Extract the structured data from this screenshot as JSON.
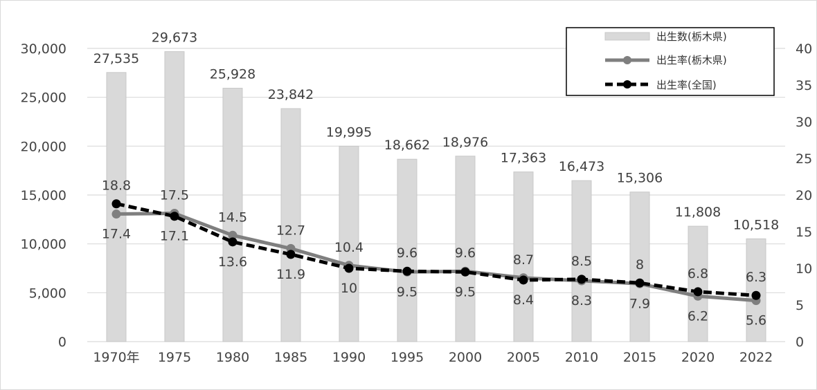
{
  "chart_data": {
    "type": "bar",
    "categories": [
      "1970年",
      "1975",
      "1980",
      "1985",
      "1990",
      "1995",
      "2000",
      "2005",
      "2010",
      "2015",
      "2020",
      "2022"
    ],
    "series": [
      {
        "name": "出生数(栃木県)",
        "type": "bar",
        "axis": "left",
        "values": [
          27535,
          29673,
          25928,
          23842,
          19995,
          18662,
          18976,
          17363,
          16473,
          15306,
          11808,
          10518
        ],
        "labels": [
          "27,535",
          "29,673",
          "25,928",
          "23,842",
          "19,995",
          "18,662",
          "18,976",
          "17,363",
          "16,473",
          "15,306",
          "11,808",
          "10,518"
        ]
      },
      {
        "name": "出生率(栃木県)",
        "type": "line",
        "axis": "right",
        "values": [
          17.4,
          17.5,
          14.5,
          12.7,
          10.4,
          9.5,
          9.6,
          8.7,
          8.3,
          7.9,
          6.2,
          5.6
        ],
        "labels": [
          "17.4",
          "17.5",
          "14.5",
          "12.7",
          "10.4",
          "9.5",
          "9.6",
          "8.7",
          "8.3",
          "7.9",
          "6.2",
          "5.6"
        ]
      },
      {
        "name": "出生率(全国)",
        "type": "line",
        "axis": "right",
        "values": [
          18.8,
          17.1,
          13.6,
          11.9,
          10,
          9.6,
          9.5,
          8.4,
          8.5,
          8,
          6.8,
          6.3
        ],
        "labels": [
          "18.8",
          "17.1",
          "13.6",
          "11.9",
          "10",
          "9.6",
          "9.5",
          "8.4",
          "8.5",
          "8",
          "6.8",
          "6.3"
        ]
      }
    ],
    "y_left": {
      "range": [
        0,
        30000
      ],
      "ticks": [
        0,
        5000,
        10000,
        15000,
        20000,
        25000,
        30000
      ],
      "tick_labels": [
        "0",
        "5,000",
        "10,000",
        "15,000",
        "20,000",
        "25,000",
        "30,000"
      ]
    },
    "y_right": {
      "range": [
        0,
        40
      ],
      "ticks": [
        0,
        5,
        10,
        15,
        20,
        25,
        30,
        35,
        40
      ],
      "tick_labels": [
        "0",
        "5",
        "10",
        "15",
        "20",
        "25",
        "30",
        "35",
        "40"
      ]
    },
    "grid": true,
    "legend_position": "top-right",
    "colors": {
      "bar_fill": "#d9d9d9",
      "bar_stroke": "#c8c8c8",
      "pref_line": "#7f7f7f",
      "national_line": "#000000",
      "grid": "#d9d9d9",
      "axis_text": "#444444"
    }
  }
}
